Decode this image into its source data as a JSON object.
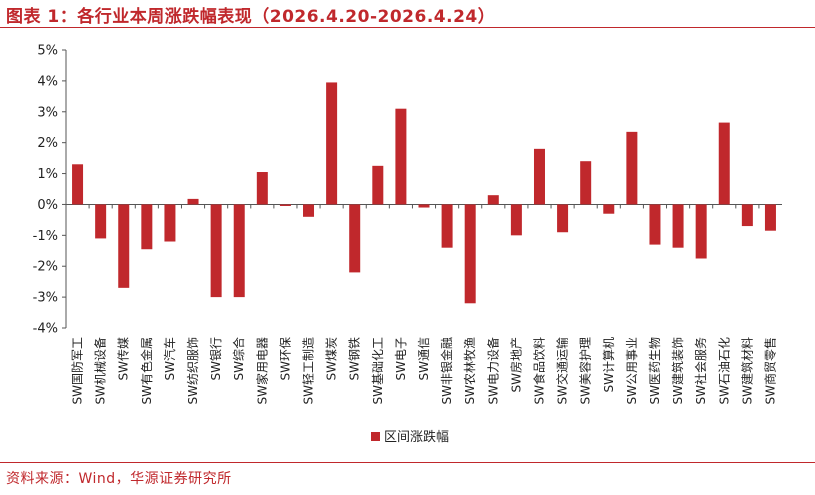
{
  "title": "图表 1：各行业本周涨跌幅表现（2026.4.20-2026.4.24）",
  "source": "资料来源：Wind，华源证券研究所",
  "colors": {
    "accent": "#c0282c",
    "bar": "#c0282c"
  },
  "chart_data": {
    "type": "bar",
    "title": "",
    "xlabel": "",
    "ylabel": "",
    "ylim": [
      -4,
      5
    ],
    "yticks": [
      "5%",
      "4%",
      "3%",
      "2%",
      "1%",
      "0%",
      "-1%",
      "-2%",
      "-3%",
      "-4%"
    ],
    "grid": false,
    "legend_position": "bottom",
    "categories": [
      "SW国防军工",
      "SW机械设备",
      "SW传媒",
      "SW有色金属",
      "SW汽车",
      "SW纺织服饰",
      "SW银行",
      "SW综合",
      "SW家用电器",
      "SW环保",
      "SW轻工制造",
      "SW煤炭",
      "SW钢铁",
      "SW基础化工",
      "SW电子",
      "SW通信",
      "SW非银金融",
      "SW农林牧渔",
      "SW电力设备",
      "SW房地产",
      "SW食品饮料",
      "SW交通运输",
      "SW美容护理",
      "SW计算机",
      "SW公用事业",
      "SW医药生物",
      "SW建筑装饰",
      "SW社会服务",
      "SW石油石化",
      "SW建筑材料",
      "SW商贸零售"
    ],
    "series": [
      {
        "name": "区间涨跌幅",
        "values": [
          1.3,
          -1.1,
          -2.7,
          -1.45,
          -1.2,
          0.18,
          -3.0,
          -3.0,
          1.05,
          -0.05,
          -0.4,
          3.95,
          -2.2,
          1.25,
          3.1,
          -0.1,
          -1.4,
          -3.2,
          0.3,
          -1.0,
          1.8,
          -0.9,
          1.4,
          -0.3,
          2.35,
          -1.3,
          -1.4,
          -1.75,
          2.65,
          -0.7,
          -0.85
        ]
      }
    ]
  }
}
